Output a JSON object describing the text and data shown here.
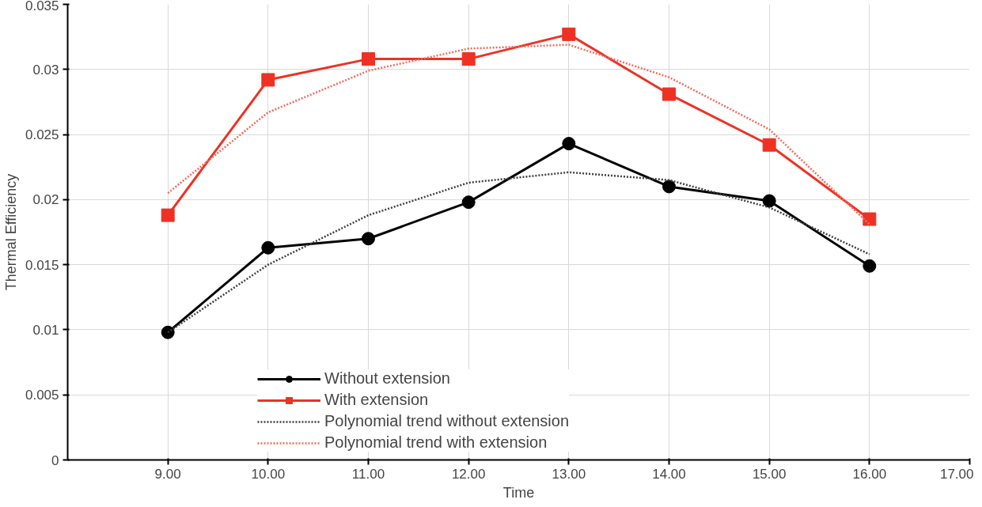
{
  "chart_data": {
    "type": "line",
    "xlabel": "Time",
    "ylabel": "Thermal Efficiency",
    "x": [
      9,
      10,
      11,
      12,
      13,
      14,
      15,
      16
    ],
    "series": [
      {
        "name": "Without extension",
        "color": "#000000",
        "marker": "circle",
        "line_style": "solid",
        "values": [
          0.0098,
          0.0163,
          0.017,
          0.0198,
          0.0243,
          0.021,
          0.0199,
          0.0149
        ]
      },
      {
        "name": "With extension",
        "color": "#ee3124",
        "marker": "square",
        "line_style": "solid",
        "values": [
          0.0188,
          0.0292,
          0.0308,
          0.0308,
          0.0327,
          0.0281,
          0.0242,
          0.0185
        ]
      },
      {
        "name": "Polynomial trend without extension",
        "color": "#404040",
        "marker": "none",
        "line_style": "dotted",
        "values": [
          0.0098,
          0.015,
          0.0188,
          0.0213,
          0.0221,
          0.0215,
          0.0194,
          0.0158
        ]
      },
      {
        "name": "Polynomial trend with extension",
        "color": "#f26b5b",
        "marker": "none",
        "line_style": "dotted",
        "values": [
          0.0205,
          0.0267,
          0.0299,
          0.0316,
          0.0319,
          0.0294,
          0.0254,
          0.0181
        ]
      }
    ],
    "xlim": [
      8,
      17
    ],
    "xticks": [
      {
        "value": 9,
        "label": "9.00"
      },
      {
        "value": 10,
        "label": "10.00"
      },
      {
        "value": 11,
        "label": "11.00"
      },
      {
        "value": 12,
        "label": "12.00"
      },
      {
        "value": 13,
        "label": "13.00"
      },
      {
        "value": 14,
        "label": "14.00"
      },
      {
        "value": 15,
        "label": "15.00"
      },
      {
        "value": 16,
        "label": "16.00"
      },
      {
        "value": 17,
        "label": "17.00"
      }
    ],
    "ylim": [
      0,
      0.035
    ],
    "yticks": [
      0,
      0.005,
      0.01,
      0.015,
      0.02,
      0.025,
      0.03,
      0.035
    ],
    "grid": true,
    "legend": "bottom"
  }
}
